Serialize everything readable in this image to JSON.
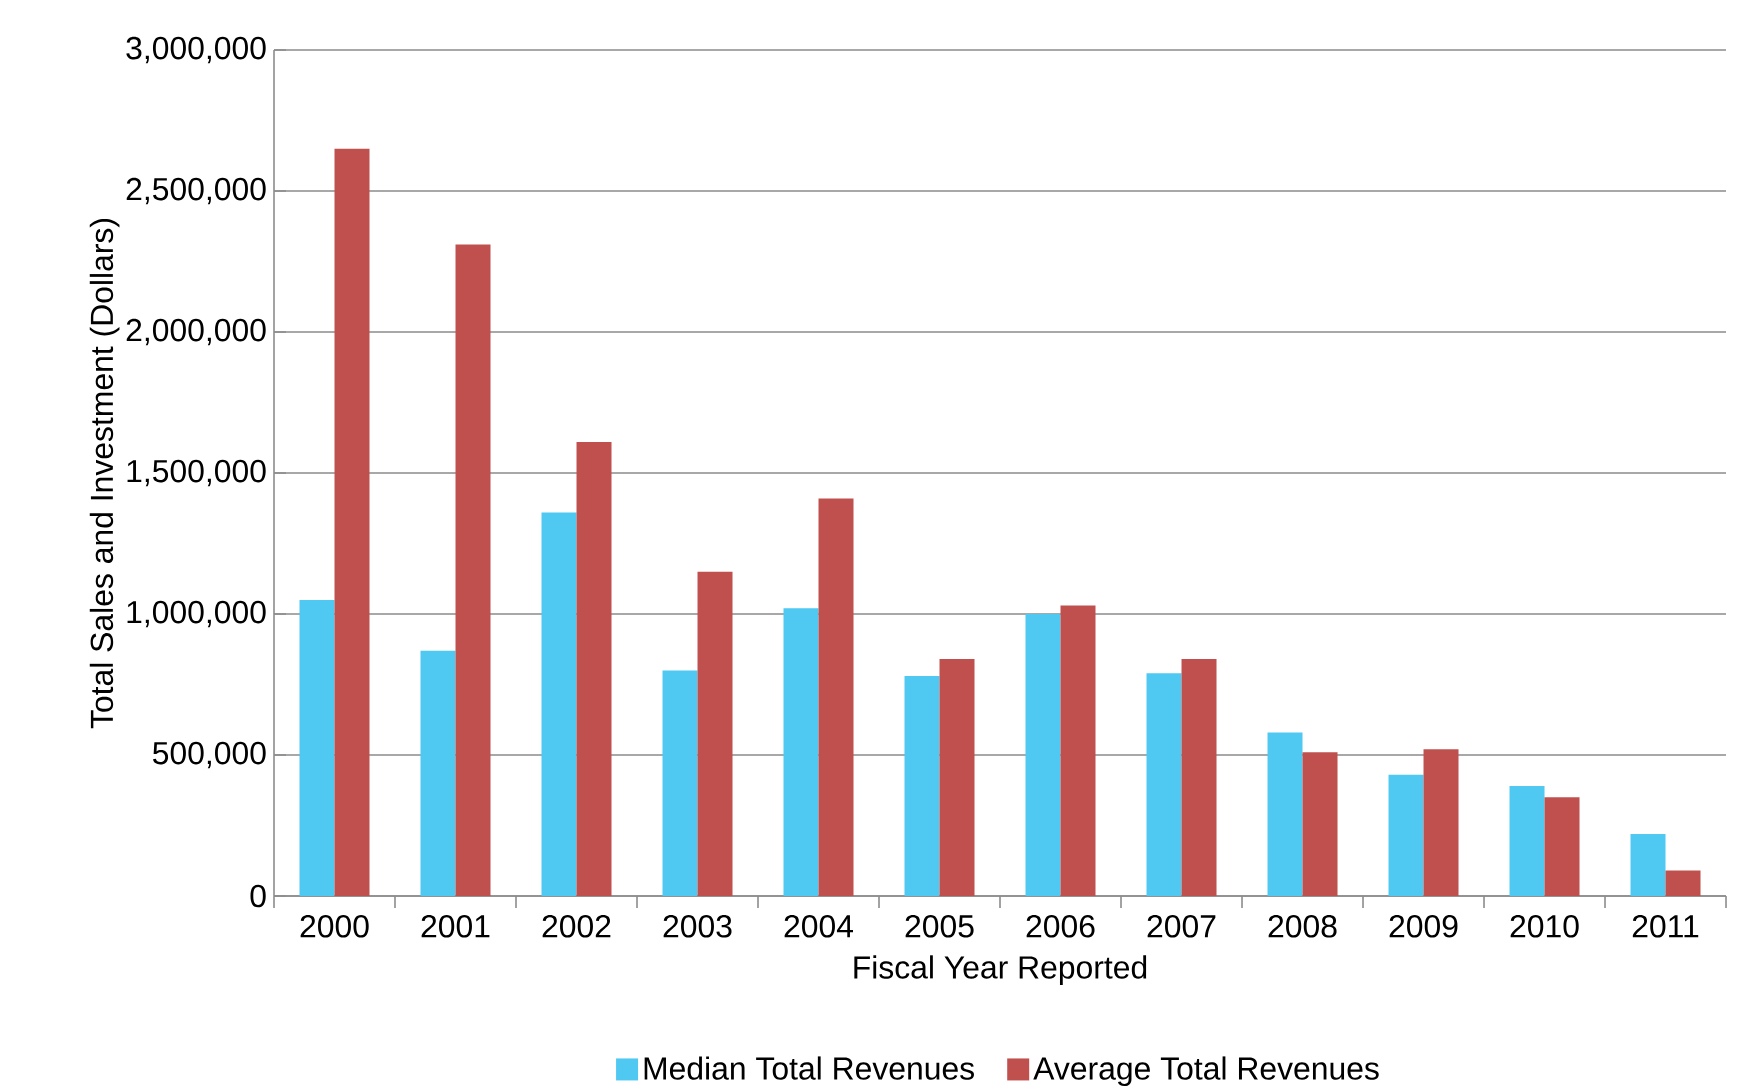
{
  "chart_data": {
    "type": "bar",
    "xlabel": "Fiscal Year Reported",
    "ylabel": "Total Sales and Investment (Dollars)",
    "categories": [
      "2000",
      "2001",
      "2002",
      "2003",
      "2004",
      "2005",
      "2006",
      "2007",
      "2008",
      "2009",
      "2010",
      "2011"
    ],
    "series": [
      {
        "name": "Median Total Revenues",
        "color": "#4fc8f2",
        "values": [
          1050000,
          870000,
          1360000,
          800000,
          1020000,
          780000,
          1000000,
          790000,
          580000,
          430000,
          390000,
          220000
        ]
      },
      {
        "name": "Average Total Revenues",
        "color": "#c0504d",
        "values": [
          2650000,
          2310000,
          1610000,
          1150000,
          1410000,
          840000,
          1030000,
          840000,
          510000,
          520000,
          350000,
          90000
        ]
      }
    ],
    "ylim": [
      0,
      3000000
    ],
    "yticks": [
      {
        "value": 0,
        "label": "0"
      },
      {
        "value": 500000,
        "label": "500,000"
      },
      {
        "value": 1000000,
        "label": "1,000,000"
      },
      {
        "value": 1500000,
        "label": "1,500,000"
      },
      {
        "value": 2000000,
        "label": "2,000,000"
      },
      {
        "value": 2500000,
        "label": "2,500,000"
      },
      {
        "value": 3000000,
        "label": "3,000,000"
      }
    ],
    "grid": "y",
    "legend": "bottom"
  }
}
